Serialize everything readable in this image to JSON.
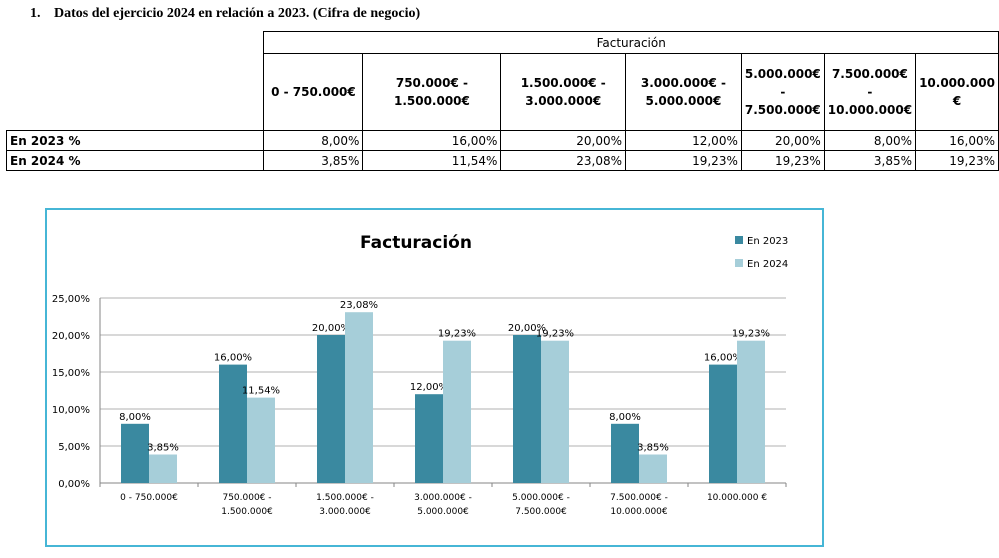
{
  "heading": {
    "number": "1.",
    "text": "Datos del ejercicio 2024 en relación a 2023. (Cifra de negocio)"
  },
  "table": {
    "group_header": "Facturación",
    "ranges": [
      [
        "0 - 750.000€"
      ],
      [
        "750.000€ -",
        "1.500.000€"
      ],
      [
        "1.500.000€ -",
        "3.000.000€"
      ],
      [
        "3.000.000€ -",
        "5.000.000€"
      ],
      [
        "5.000.000€",
        "-",
        "7.500.000€"
      ],
      [
        "7.500.000€",
        "-",
        "10.000.000€"
      ],
      [
        "10.000.000",
        "€"
      ]
    ],
    "rows": [
      {
        "label": "En 2023 %",
        "values": [
          "8,00%",
          "16,00%",
          "20,00%",
          "12,00%",
          "20,00%",
          "8,00%",
          "16,00%"
        ]
      },
      {
        "label": "En 2024 %",
        "values": [
          "3,85%",
          "11,54%",
          "23,08%",
          "19,23%",
          "19,23%",
          "3,85%",
          "19,23%"
        ]
      }
    ]
  },
  "chart_data": {
    "type": "bar",
    "title": "Facturación",
    "categories": [
      [
        "0 - 750.000€"
      ],
      [
        "750.000€ -",
        "1.500.000€"
      ],
      [
        "1.500.000€ -",
        "3.000.000€"
      ],
      [
        "3.000.000€ -",
        "5.000.000€"
      ],
      [
        "5.000.000€ -",
        "7.500.000€"
      ],
      [
        "7.500.000€ -",
        "10.000.000€"
      ],
      [
        "10.000.000 €"
      ]
    ],
    "series": [
      {
        "name": "En 2023",
        "color": "#3a89a0",
        "values": [
          8.0,
          16.0,
          20.0,
          12.0,
          20.0,
          8.0,
          16.0
        ],
        "labels": [
          "8,00%",
          "16,00%",
          "20,00%",
          "12,00%",
          "20,00%",
          "8,00%",
          "16,00%"
        ]
      },
      {
        "name": "En 2024",
        "color": "#a6ced9",
        "values": [
          3.85,
          11.54,
          23.08,
          19.23,
          19.23,
          3.85,
          19.23
        ],
        "labels": [
          "3,85%",
          "11,54%",
          "23,08%",
          "19,23%",
          "19,23%",
          "3,85%",
          "19,23%"
        ]
      }
    ],
    "yticks": [
      "0,00%",
      "5,00%",
      "10,00%",
      "15,00%",
      "20,00%",
      "25,00%"
    ],
    "ylim": [
      0,
      25
    ],
    "xlabel": "",
    "ylabel": "",
    "grid": true,
    "legend": "top-right"
  }
}
